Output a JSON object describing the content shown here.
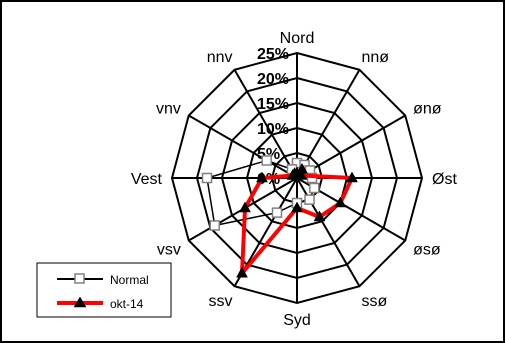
{
  "chart_data": {
    "type": "radar",
    "title": "",
    "directions": [
      "Nord",
      "nnø",
      "ønø",
      "Øst",
      "øsø",
      "ssø",
      "Syd",
      "ssv",
      "vsv",
      "Vest",
      "vnv",
      "nnv"
    ],
    "tick_labels": [
      "0%",
      "5%",
      "10%",
      "15%",
      "20%",
      "25%"
    ],
    "rlim": [
      0,
      25
    ],
    "grid": true,
    "legend_position": "bottom-left",
    "series": [
      {
        "name": "Normal",
        "color": "#808080",
        "marker": "square-open",
        "values": [
          3,
          3,
          3,
          3,
          4,
          5,
          5,
          8,
          19,
          18,
          7,
          2
        ]
      },
      {
        "name": "okt-14",
        "color": "#ff0000",
        "marker": "triangle-filled",
        "values": [
          1,
          2,
          1,
          11,
          10,
          9,
          6,
          22,
          12,
          7,
          1,
          1
        ]
      }
    ]
  }
}
